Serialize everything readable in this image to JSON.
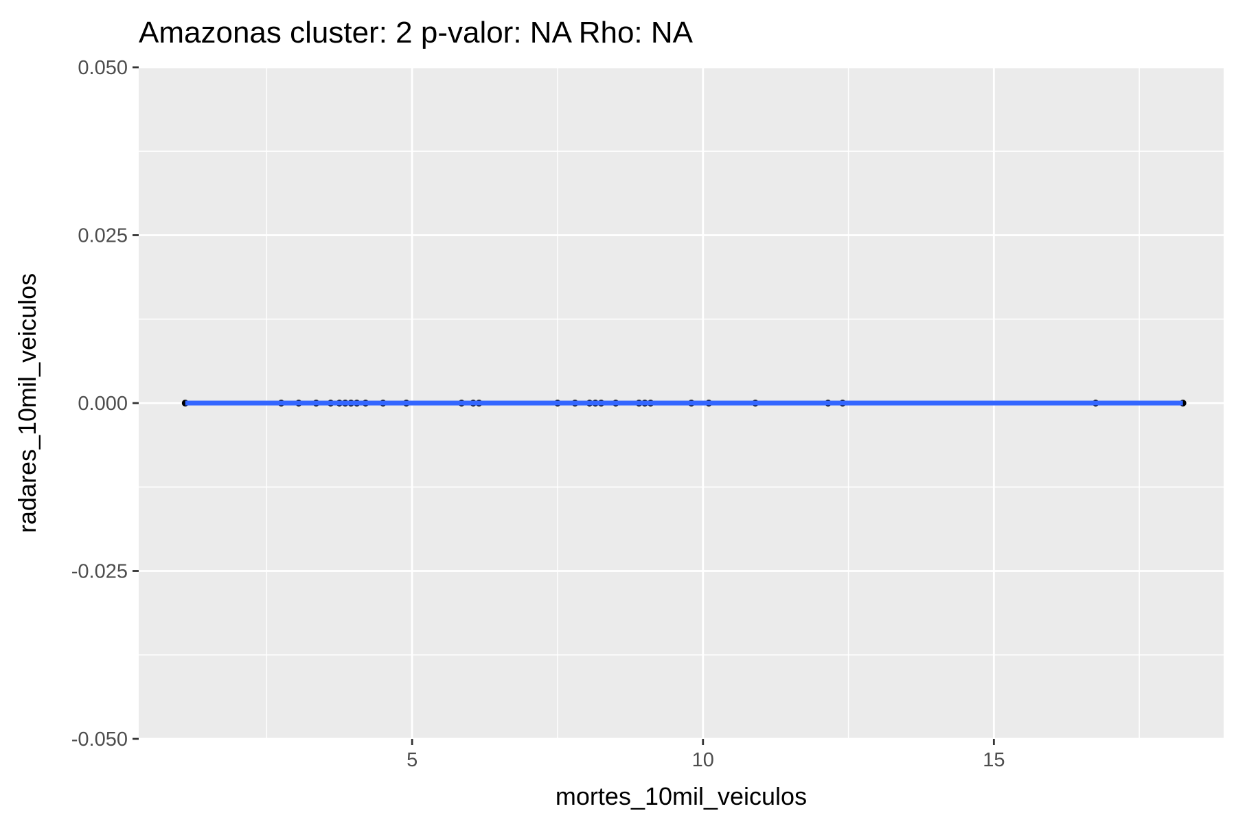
{
  "chart_data": {
    "type": "scatter",
    "title": "Amazonas cluster: 2 p-valor: NA Rho: NA",
    "xlabel": "mortes_10mil_veiculos",
    "ylabel": "radares_10mil_veiculos",
    "xlim": [
      0.3,
      18.95
    ],
    "ylim": [
      -0.05,
      0.05
    ],
    "x_ticks": [
      5,
      10,
      15
    ],
    "x_tick_labels": [
      "5",
      "10",
      "15"
    ],
    "x_minor_ticks": [
      2.5,
      7.5,
      12.5,
      17.5
    ],
    "y_ticks": [
      -0.05,
      -0.025,
      0,
      0.025,
      0.05
    ],
    "y_tick_labels": [
      "-0.050",
      "-0.025",
      "0.000",
      "0.025",
      "0.050"
    ],
    "y_minor_ticks": [
      -0.0375,
      -0.0125,
      0.0125,
      0.0375
    ],
    "grid": true,
    "legend": "none",
    "colors": {
      "panel": "#ebebeb",
      "grid": "#ffffff",
      "point": "#000000",
      "fit_line": "#3366ff"
    },
    "series": [
      {
        "x": [
          1.1,
          2.75,
          3.05,
          3.35,
          3.6,
          3.75,
          3.85,
          3.95,
          4.05,
          4.2,
          4.5,
          4.9,
          5.85,
          6.05,
          6.15,
          7.5,
          7.8,
          8.05,
          8.15,
          8.25,
          8.5,
          8.9,
          9.0,
          9.1,
          9.8,
          10.1,
          10.9,
          12.15,
          12.4,
          16.75,
          18.25
        ],
        "y": [
          0,
          0,
          0,
          0,
          0,
          0,
          0,
          0,
          0,
          0,
          0,
          0,
          0,
          0,
          0,
          0,
          0,
          0,
          0,
          0,
          0,
          0,
          0,
          0,
          0,
          0,
          0,
          0,
          0,
          0,
          0
        ]
      }
    ],
    "fit_line": {
      "x": [
        1.1,
        18.25
      ],
      "y": [
        0,
        0
      ]
    }
  }
}
